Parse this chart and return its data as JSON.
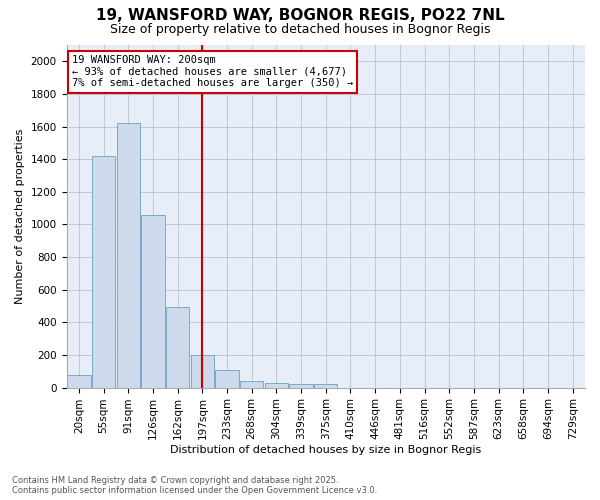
{
  "title": "19, WANSFORD WAY, BOGNOR REGIS, PO22 7NL",
  "subtitle": "Size of property relative to detached houses in Bognor Regis",
  "xlabel": "Distribution of detached houses by size in Bognor Regis",
  "ylabel": "Number of detached properties",
  "bar_labels": [
    "20sqm",
    "55sqm",
    "91sqm",
    "126sqm",
    "162sqm",
    "197sqm",
    "233sqm",
    "268sqm",
    "304sqm",
    "339sqm",
    "375sqm",
    "410sqm",
    "446sqm",
    "481sqm",
    "516sqm",
    "552sqm",
    "587sqm",
    "623sqm",
    "658sqm",
    "694sqm",
    "729sqm"
  ],
  "bar_values": [
    80,
    1420,
    1620,
    1060,
    495,
    200,
    105,
    42,
    30,
    20,
    20,
    0,
    0,
    0,
    0,
    0,
    0,
    0,
    0,
    0,
    0
  ],
  "bar_color": "#ccdaeb",
  "bar_edge_color": "#7aaac8",
  "vline_index": 5,
  "vline_color": "#cc0000",
  "annotation_text": "19 WANSFORD WAY: 200sqm\n← 93% of detached houses are smaller (4,677)\n7% of semi-detached houses are larger (350) →",
  "annotation_box_facecolor": "#ffffff",
  "annotation_box_edgecolor": "#cc0000",
  "ylim": [
    0,
    2100
  ],
  "yticks": [
    0,
    200,
    400,
    600,
    800,
    1000,
    1200,
    1400,
    1600,
    1800,
    2000
  ],
  "grid_color": "#c0c8d8",
  "axes_bg_color": "#e8eef8",
  "fig_bg_color": "#ffffff",
  "title_fontsize": 11,
  "subtitle_fontsize": 9,
  "ylabel_fontsize": 8,
  "xlabel_fontsize": 8,
  "tick_fontsize": 7.5,
  "footer_text": "Contains HM Land Registry data © Crown copyright and database right 2025.\nContains public sector information licensed under the Open Government Licence v3.0."
}
